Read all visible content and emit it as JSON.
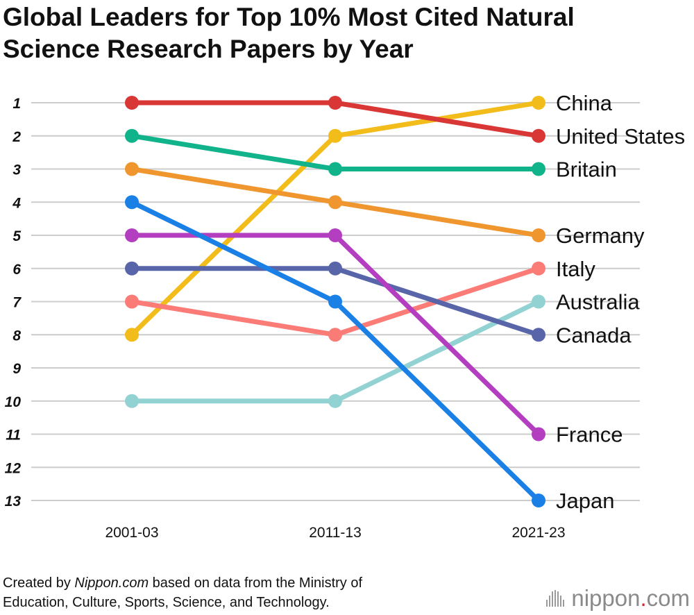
{
  "title_line1": "Global Leaders for Top 10% Most Cited Natural",
  "title_line2": "Science Research Papers by Year",
  "footer": {
    "line1_prefix": "Created by ",
    "line1_source": "Nippon.com",
    "line1_suffix": " based on data from the Ministry of",
    "line2": "Education, Culture, Sports, Science, and Technology."
  },
  "logo": {
    "brand": "nippon",
    "dot": ".",
    "tld": "com"
  },
  "chart_data": {
    "type": "line",
    "x": [
      "2001-03",
      "2011-13",
      "2021-23"
    ],
    "y_ticks": [
      "1",
      "2",
      "3",
      "4",
      "5",
      "6",
      "7",
      "8",
      "9",
      "10",
      "11",
      "12",
      "13"
    ],
    "ylim": [
      1,
      13
    ],
    "y_inverted": true,
    "grid": true,
    "legend": "direct labels at right end of lines",
    "series": [
      {
        "name": "China",
        "values": [
          8,
          2,
          1
        ],
        "color": "#f2bc1b"
      },
      {
        "name": "United States",
        "values": [
          1,
          1,
          2
        ],
        "color": "#d93636"
      },
      {
        "name": "Britain",
        "values": [
          2,
          3,
          3
        ],
        "color": "#11b38b"
      },
      {
        "name": "Germany",
        "values": [
          3,
          4,
          5
        ],
        "color": "#f0962f"
      },
      {
        "name": "Italy",
        "values": [
          7,
          8,
          6
        ],
        "color": "#fb7b76"
      },
      {
        "name": "Australia",
        "values": [
          10,
          10,
          7
        ],
        "color": "#93d2d3"
      },
      {
        "name": "Canada",
        "values": [
          6,
          6,
          8
        ],
        "color": "#5865a8"
      },
      {
        "name": "France",
        "values": [
          5,
          5,
          11
        ],
        "color": "#b33ec0"
      },
      {
        "name": "Japan",
        "values": [
          4,
          7,
          13
        ],
        "color": "#1a80e5"
      }
    ]
  }
}
